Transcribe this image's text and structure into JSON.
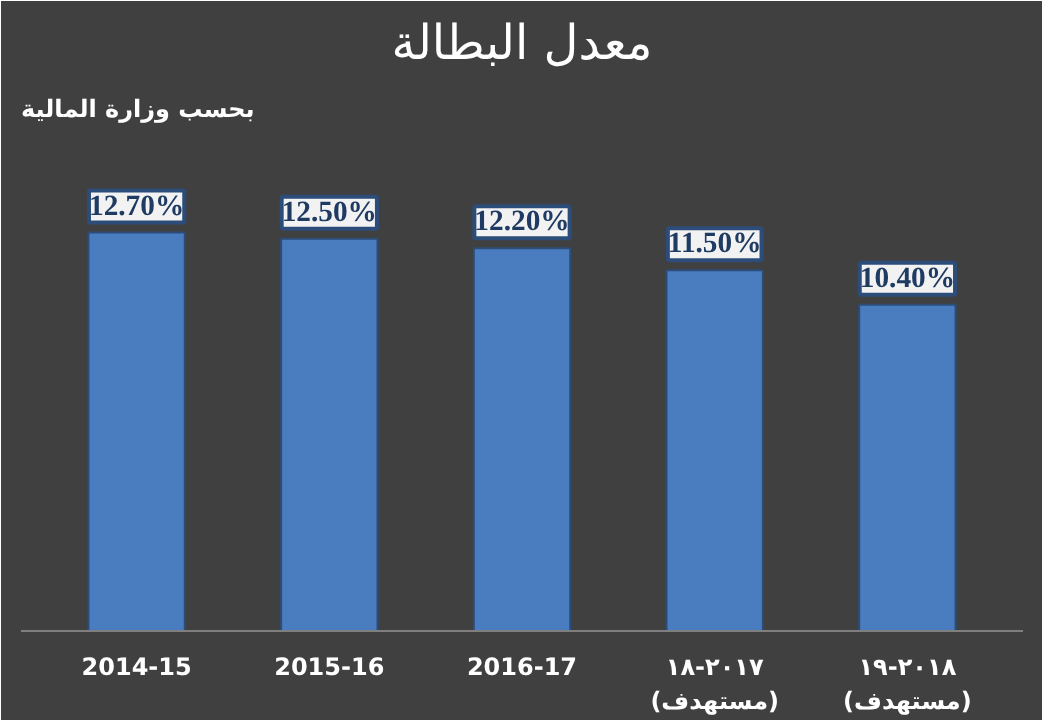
{
  "chart_data": {
    "type": "bar",
    "title": "معدل البطالة",
    "subtitle": "بحسب وزارة المالية",
    "categories": [
      "2014-15",
      "2015-16",
      "2016-17",
      "٢٠١٧-١٨\n(مستهدف)",
      "٢٠١٨-١٩\n(مستهدف)"
    ],
    "values": [
      12.7,
      12.5,
      12.2,
      11.5,
      10.4
    ],
    "value_labels": [
      "12.70%",
      "12.50%",
      "12.20%",
      "11.50%",
      "10.40%"
    ],
    "color": "#4a7cc0",
    "grid": false
  }
}
